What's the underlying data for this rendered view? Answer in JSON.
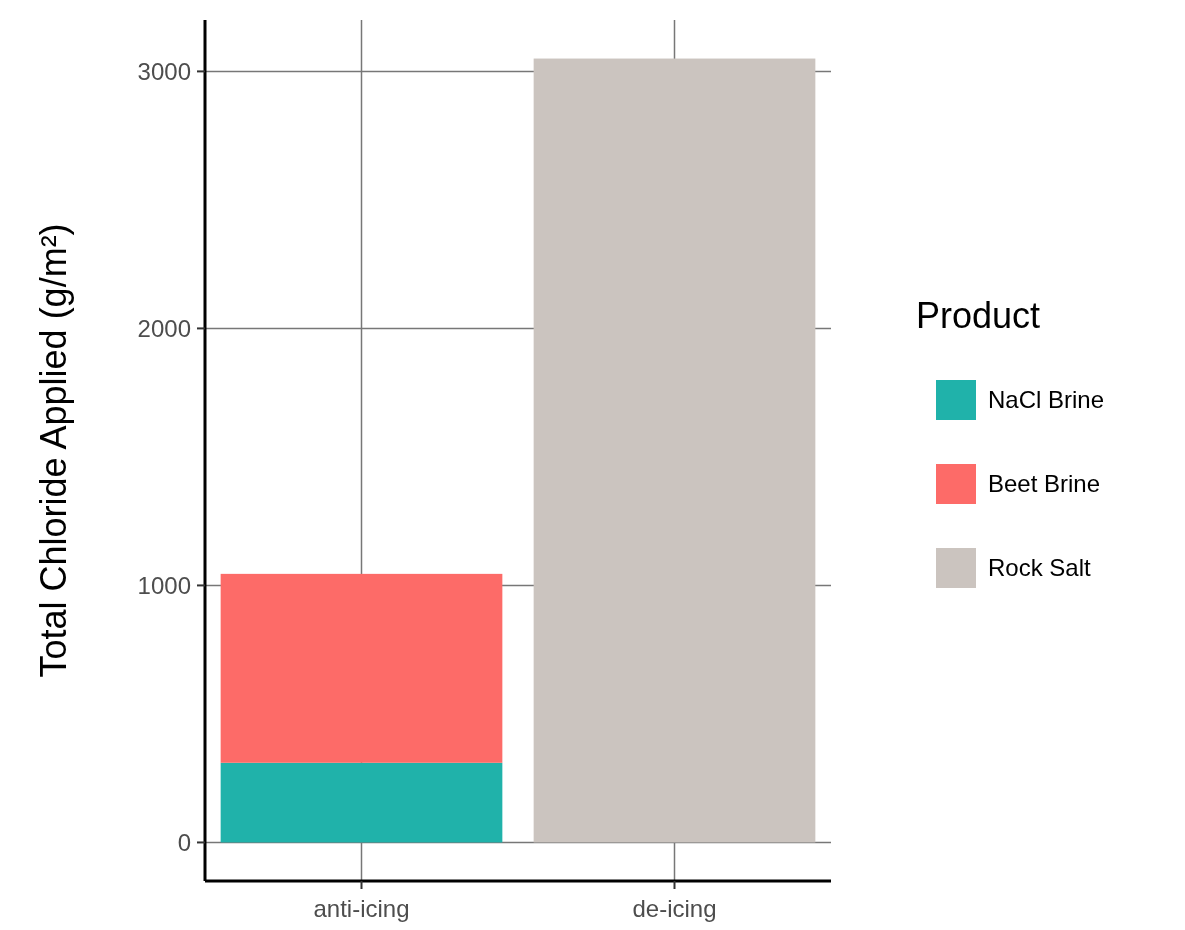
{
  "chart_data": {
    "type": "bar",
    "stacked": true,
    "ylabel": "Total Chloride Applied (g/m²)",
    "legend_title": "Product",
    "categories": [
      "anti-icing",
      "de-icing"
    ],
    "series": [
      {
        "name": "NaCl Brine",
        "color": "#20b2aa",
        "values": [
          310,
          null
        ]
      },
      {
        "name": "Beet Brine",
        "color": "#fd6b68",
        "values": [
          735,
          null
        ]
      },
      {
        "name": "Rock Salt",
        "color": "#cbc4bf",
        "values": [
          null,
          3050
        ]
      }
    ],
    "ylim": [
      -150,
      3200
    ],
    "yticks": [
      0,
      1000,
      2000,
      3000
    ],
    "grid": true,
    "legend": "right"
  }
}
